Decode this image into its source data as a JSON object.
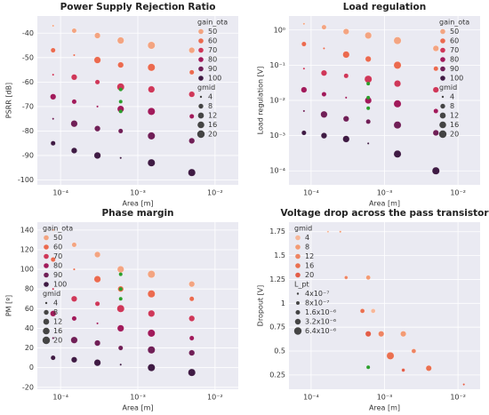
{
  "chart_data": [
    {
      "type": "scatter",
      "title": "Power Supply Rejection Ratio",
      "xlabel": "Area [m]",
      "ylabel": "PSRR [dB]",
      "xlog": true,
      "xlim": [
        5e-05,
        0.02
      ],
      "xticks": [
        {
          "value": 0.0001,
          "label": "10⁻⁴"
        },
        {
          "value": 0.001,
          "label": "10⁻³"
        },
        {
          "value": 0.01,
          "label": "10⁻²"
        }
      ],
      "ylim": [
        -102,
        -33
      ],
      "yticks": [
        -100,
        -90,
        -80,
        -70,
        -60,
        -50,
        -40
      ],
      "grid": true,
      "legend": "upper right",
      "legend_title": "gain_ota",
      "size_legend": {
        "title": "gmid",
        "values": [
          4,
          8,
          12,
          16,
          20
        ]
      },
      "series": [
        {
          "name": "50",
          "color": "#f3a481",
          "x": [
            8e-05,
            0.00015,
            0.0003,
            0.0006,
            0.0015,
            0.005
          ],
          "values": [
            -37,
            -39,
            -41,
            -43,
            -45,
            -47
          ],
          "sizes": [
            4,
            8,
            12,
            16,
            20,
            12
          ]
        },
        {
          "name": "60",
          "color": "#eb6a4f",
          "x": [
            8e-05,
            0.00015,
            0.0003,
            0.0006,
            0.0015,
            0.005
          ],
          "values": [
            -47,
            -49,
            -51,
            -53,
            -54,
            -56
          ],
          "sizes": [
            8,
            4,
            16,
            12,
            20,
            8
          ]
        },
        {
          "name": "70",
          "color": "#cf3759",
          "x": [
            8e-05,
            0.00015,
            0.0003,
            0.0006,
            0.0015,
            0.005
          ],
          "values": [
            -57,
            -58,
            -60,
            -62,
            -63,
            -65
          ],
          "sizes": [
            4,
            12,
            8,
            20,
            16,
            12
          ]
        },
        {
          "name": "80",
          "color": "#a11a5b",
          "x": [
            8e-05,
            0.00015,
            0.0003,
            0.0006,
            0.0015,
            0.005
          ],
          "values": [
            -66,
            -68,
            -70,
            -71,
            -72,
            -74
          ],
          "sizes": [
            12,
            8,
            4,
            16,
            20,
            8
          ]
        },
        {
          "name": "90",
          "color": "#701f57",
          "x": [
            8e-05,
            0.00015,
            0.0003,
            0.0006,
            0.0015,
            0.005
          ],
          "values": [
            -75,
            -77,
            -79,
            -80,
            -82,
            -84
          ],
          "sizes": [
            4,
            16,
            12,
            8,
            20,
            12
          ]
        },
        {
          "name": "100",
          "color": "#3f1b44",
          "x": [
            8e-05,
            0.00015,
            0.0003,
            0.0006,
            0.0015,
            0.005
          ],
          "values": [
            -85,
            -88,
            -90,
            -91,
            -93,
            -97
          ],
          "sizes": [
            8,
            12,
            16,
            4,
            20,
            20
          ]
        }
      ],
      "highlight": {
        "color": "#2ca02c",
        "x": [
          0.0006,
          0.0006,
          0.0006
        ],
        "values": [
          -63,
          -68,
          -72
        ]
      }
    },
    {
      "type": "scatter",
      "title": "Load regulation",
      "xlabel": "Area [m]",
      "ylabel": "Load regulation [V]",
      "xlog": true,
      "xlim": [
        5e-05,
        0.02
      ],
      "xticks": [
        {
          "value": 0.0001,
          "label": "10⁻⁴"
        },
        {
          "value": 0.001,
          "label": "10⁻³"
        },
        {
          "value": 0.01,
          "label": "10⁻²"
        }
      ],
      "ylog": true,
      "ylim": [
        4e-05,
        2.5
      ],
      "yticks": [
        {
          "value": 0.0001,
          "label": "10⁻⁴"
        },
        {
          "value": 0.001,
          "label": "10⁻³"
        },
        {
          "value": 0.01,
          "label": "10⁻²"
        },
        {
          "value": 0.1,
          "label": "10⁻¹"
        },
        {
          "value": 1,
          "label": "10⁰"
        }
      ],
      "grid": true,
      "legend": "upper right",
      "legend_title": "gain_ota",
      "size_legend": {
        "title": "gmid",
        "values": [
          4,
          8,
          12,
          16,
          20
        ]
      },
      "series": [
        {
          "name": "50",
          "color": "#f3a481",
          "x": [
            8e-05,
            0.00015,
            0.0003,
            0.0006,
            0.0015,
            0.005
          ],
          "values": [
            1.5,
            1.2,
            0.9,
            0.7,
            0.5,
            0.3
          ],
          "sizes": [
            4,
            8,
            12,
            16,
            20,
            12
          ]
        },
        {
          "name": "60",
          "color": "#eb6a4f",
          "x": [
            8e-05,
            0.00015,
            0.0003,
            0.0006,
            0.0015,
            0.005
          ],
          "values": [
            0.4,
            0.3,
            0.2,
            0.15,
            0.1,
            0.08
          ],
          "sizes": [
            8,
            4,
            16,
            12,
            20,
            8
          ]
        },
        {
          "name": "70",
          "color": "#cf3759",
          "x": [
            8e-05,
            0.00015,
            0.0003,
            0.0006,
            0.0015,
            0.005
          ],
          "values": [
            0.08,
            0.06,
            0.05,
            0.04,
            0.03,
            0.02
          ],
          "sizes": [
            4,
            12,
            8,
            20,
            16,
            12
          ]
        },
        {
          "name": "80",
          "color": "#a11a5b",
          "x": [
            8e-05,
            0.00015,
            0.0003,
            0.0006,
            0.0015,
            0.005
          ],
          "values": [
            0.02,
            0.015,
            0.012,
            0.01,
            0.008,
            0.005
          ],
          "sizes": [
            12,
            8,
            4,
            16,
            20,
            8
          ]
        },
        {
          "name": "90",
          "color": "#701f57",
          "x": [
            8e-05,
            0.00015,
            0.0003,
            0.0006,
            0.0015,
            0.005
          ],
          "values": [
            0.005,
            0.004,
            0.003,
            0.0025,
            0.002,
            0.0012
          ],
          "sizes": [
            4,
            16,
            12,
            8,
            20,
            12
          ]
        },
        {
          "name": "100",
          "color": "#3f1b44",
          "x": [
            8e-05,
            0.00015,
            0.0003,
            0.0006,
            0.0015,
            0.005
          ],
          "values": [
            0.0012,
            0.001,
            0.0008,
            0.0006,
            0.0003,
            0.0001
          ],
          "sizes": [
            8,
            12,
            16,
            4,
            20,
            20
          ]
        }
      ],
      "highlight": {
        "color": "#2ca02c",
        "x": [
          0.0006,
          0.0006,
          0.0006
        ],
        "values": [
          0.03,
          0.012,
          0.006
        ]
      }
    },
    {
      "type": "scatter",
      "title": "Phase margin",
      "xlabel": "Area [m]",
      "ylabel": "PM [º]",
      "xlog": true,
      "xlim": [
        5e-05,
        0.02
      ],
      "xticks": [
        {
          "value": 0.0001,
          "label": "10⁻⁴"
        },
        {
          "value": 0.001,
          "label": "10⁻³"
        },
        {
          "value": 0.01,
          "label": "10⁻²"
        }
      ],
      "ylim": [
        -22,
        148
      ],
      "yticks": [
        -20,
        0,
        20,
        40,
        60,
        80,
        100,
        120,
        140
      ],
      "grid": true,
      "legend": "upper left",
      "legend_title": "gain_ota",
      "size_legend": {
        "title": "gmid",
        "values": [
          4,
          8,
          12,
          16,
          20
        ]
      },
      "series": [
        {
          "name": "50",
          "color": "#f3a481",
          "x": [
            8e-05,
            0.00015,
            0.0003,
            0.0006,
            0.0015,
            0.005
          ],
          "values": [
            140,
            125,
            115,
            100,
            95,
            85
          ],
          "sizes": [
            4,
            8,
            12,
            16,
            20,
            12
          ]
        },
        {
          "name": "60",
          "color": "#eb6a4f",
          "x": [
            8e-05,
            0.00015,
            0.0003,
            0.0006,
            0.0015,
            0.005
          ],
          "values": [
            110,
            100,
            90,
            80,
            75,
            70
          ],
          "sizes": [
            8,
            4,
            16,
            12,
            20,
            8
          ]
        },
        {
          "name": "70",
          "color": "#cf3759",
          "x": [
            8e-05,
            0.00015,
            0.0003,
            0.0006,
            0.0015,
            0.005
          ],
          "values": [
            80,
            70,
            65,
            60,
            55,
            50
          ],
          "sizes": [
            4,
            12,
            8,
            20,
            16,
            12
          ]
        },
        {
          "name": "80",
          "color": "#a11a5b",
          "x": [
            8e-05,
            0.00015,
            0.0003,
            0.0006,
            0.0015,
            0.005
          ],
          "values": [
            55,
            50,
            45,
            40,
            35,
            30
          ],
          "sizes": [
            12,
            8,
            4,
            16,
            20,
            8
          ]
        },
        {
          "name": "90",
          "color": "#701f57",
          "x": [
            8e-05,
            0.00015,
            0.0003,
            0.0006,
            0.0015,
            0.005
          ],
          "values": [
            30,
            28,
            25,
            20,
            18,
            15
          ],
          "sizes": [
            4,
            16,
            12,
            8,
            20,
            12
          ]
        },
        {
          "name": "100",
          "color": "#3f1b44",
          "x": [
            8e-05,
            0.00015,
            0.0003,
            0.0006,
            0.0015,
            0.005
          ],
          "values": [
            10,
            8,
            5,
            3,
            0,
            -5
          ],
          "sizes": [
            8,
            12,
            16,
            4,
            20,
            20
          ]
        }
      ],
      "highlight": {
        "color": "#2ca02c",
        "x": [
          0.0006,
          0.0006,
          0.0006
        ],
        "values": [
          95,
          80,
          70
        ]
      }
    },
    {
      "type": "scatter",
      "title": "Voltage drop across the pass transistor",
      "xlabel": "Area [m]",
      "ylabel": "Dropout [V]",
      "xlog": true,
      "xlim": [
        5e-05,
        0.02
      ],
      "xticks": [
        {
          "value": 0.0001,
          "label": "10⁻⁴"
        },
        {
          "value": 0.001,
          "label": "10⁻³"
        },
        {
          "value": 0.01,
          "label": "10⁻²"
        }
      ],
      "ylim": [
        0.1,
        1.85
      ],
      "yticks": [
        0.25,
        0.5,
        0.75,
        1.0,
        1.25,
        1.5,
        1.75
      ],
      "grid": true,
      "legend": "upper left",
      "legend_title": "gmid",
      "size_legend": {
        "title": "L_pt",
        "values": [
          4e-07,
          8e-07,
          1.6e-06,
          3.2e-06,
          6.4e-06
        ],
        "labels": [
          "4x10⁻⁷",
          "8x10⁻⁷",
          "1.6x10⁻⁶",
          "3.2x10⁻⁶",
          "6.4x10⁻⁶"
        ]
      },
      "series": [
        {
          "name": "4",
          "color": "#f7b799",
          "x": [
            0.00017,
            0.0003,
            0.0007
          ],
          "values": [
            1.75,
            1.27,
            0.92
          ],
          "sizes": [
            4e-07,
            8e-07,
            1.6e-06
          ]
        },
        {
          "name": "8",
          "color": "#f39b74",
          "x": [
            0.00025,
            0.0006,
            0.0018
          ],
          "values": [
            1.75,
            1.27,
            0.68
          ],
          "sizes": [
            4e-07,
            1.6e-06,
            3.2e-06
          ]
        },
        {
          "name": "12",
          "color": "#ee8463",
          "x": [
            0.0003,
            0.0009,
            0.0025
          ],
          "values": [
            1.27,
            0.68,
            0.5
          ],
          "sizes": [
            8e-07,
            3.2e-06,
            1.6e-06
          ]
        },
        {
          "name": "16",
          "color": "#ea7050",
          "x": [
            0.0005,
            0.0012,
            0.004
          ],
          "values": [
            0.92,
            0.45,
            0.32
          ],
          "sizes": [
            1.6e-06,
            6.4e-06,
            3.2e-06
          ]
        },
        {
          "name": "20",
          "color": "#e35d48",
          "x": [
            0.0006,
            0.0018,
            0.012
          ],
          "values": [
            0.68,
            0.3,
            0.15
          ],
          "sizes": [
            3.2e-06,
            8e-07,
            4e-07
          ]
        }
      ],
      "highlight": {
        "color": "#2ca02c",
        "x": [
          0.0006
        ],
        "values": [
          0.33
        ]
      }
    }
  ]
}
